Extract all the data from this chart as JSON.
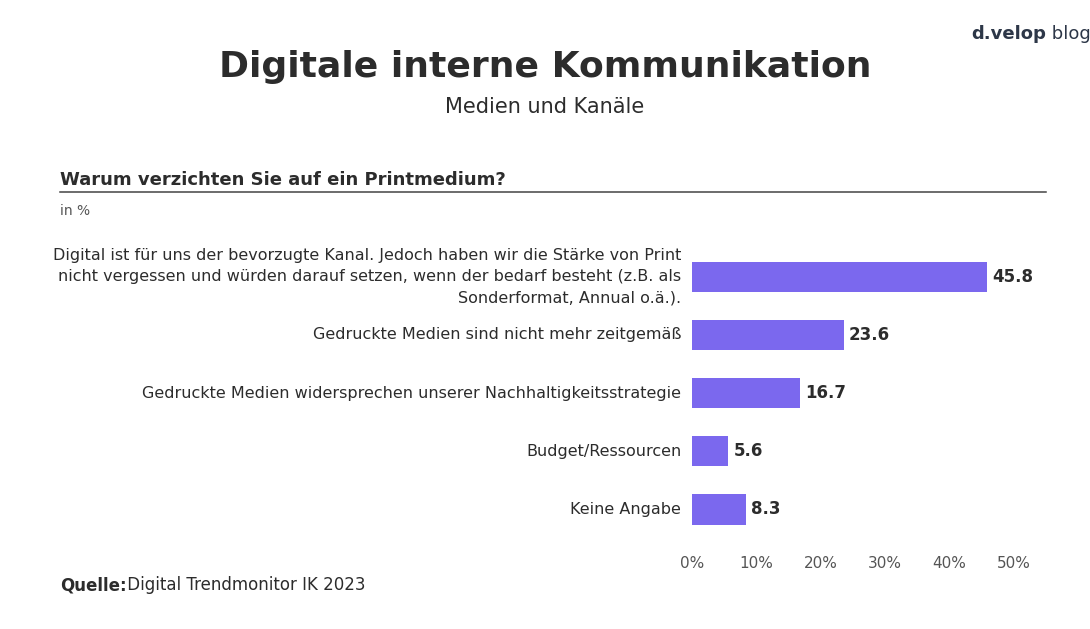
{
  "title": "Digitale interne Kommunikation",
  "subtitle": "Medien und Kanäle",
  "question": "Warum verzichten Sie auf ein Printmedium?",
  "unit_label": "in %",
  "source_label": "Quelle:",
  "source_text": " Digital Trendmonitor IK 2023",
  "brand_bold": "d.velop",
  "brand_regular": " blog",
  "categories": [
    "Digital ist für uns der bevorzugte Kanal. Jedoch haben wir die Stärke von Print\nnicht vergessen und würden darauf setzen, wenn der bedarf besteht (z.B. als\nSonderformat, Annual o.ä.).",
    "Gedruckte Medien sind nicht mehr zeitgemäß",
    "Gedruckte Medien widersprechen unserer Nachhaltigkeitsstrategie",
    "Budget/Ressourcen",
    "Keine Angabe"
  ],
  "values": [
    45.8,
    23.6,
    16.7,
    5.6,
    8.3
  ],
  "bar_color": "#7B68EE",
  "background_color": "#FFFFFF",
  "text_color": "#2c2c2c",
  "axis_text_color": "#555555",
  "brand_color": "#2d3748",
  "title_fontsize": 26,
  "subtitle_fontsize": 15,
  "question_fontsize": 13,
  "label_fontsize": 11.5,
  "value_fontsize": 12,
  "source_fontsize": 12,
  "brand_fontsize": 13,
  "unit_fontsize": 10,
  "xtick_fontsize": 11,
  "xlim": [
    0,
    50
  ],
  "xticks": [
    0,
    10,
    20,
    30,
    40,
    50
  ],
  "xtick_labels": [
    "0%",
    "10%",
    "20%",
    "30%",
    "40%",
    "50%"
  ]
}
